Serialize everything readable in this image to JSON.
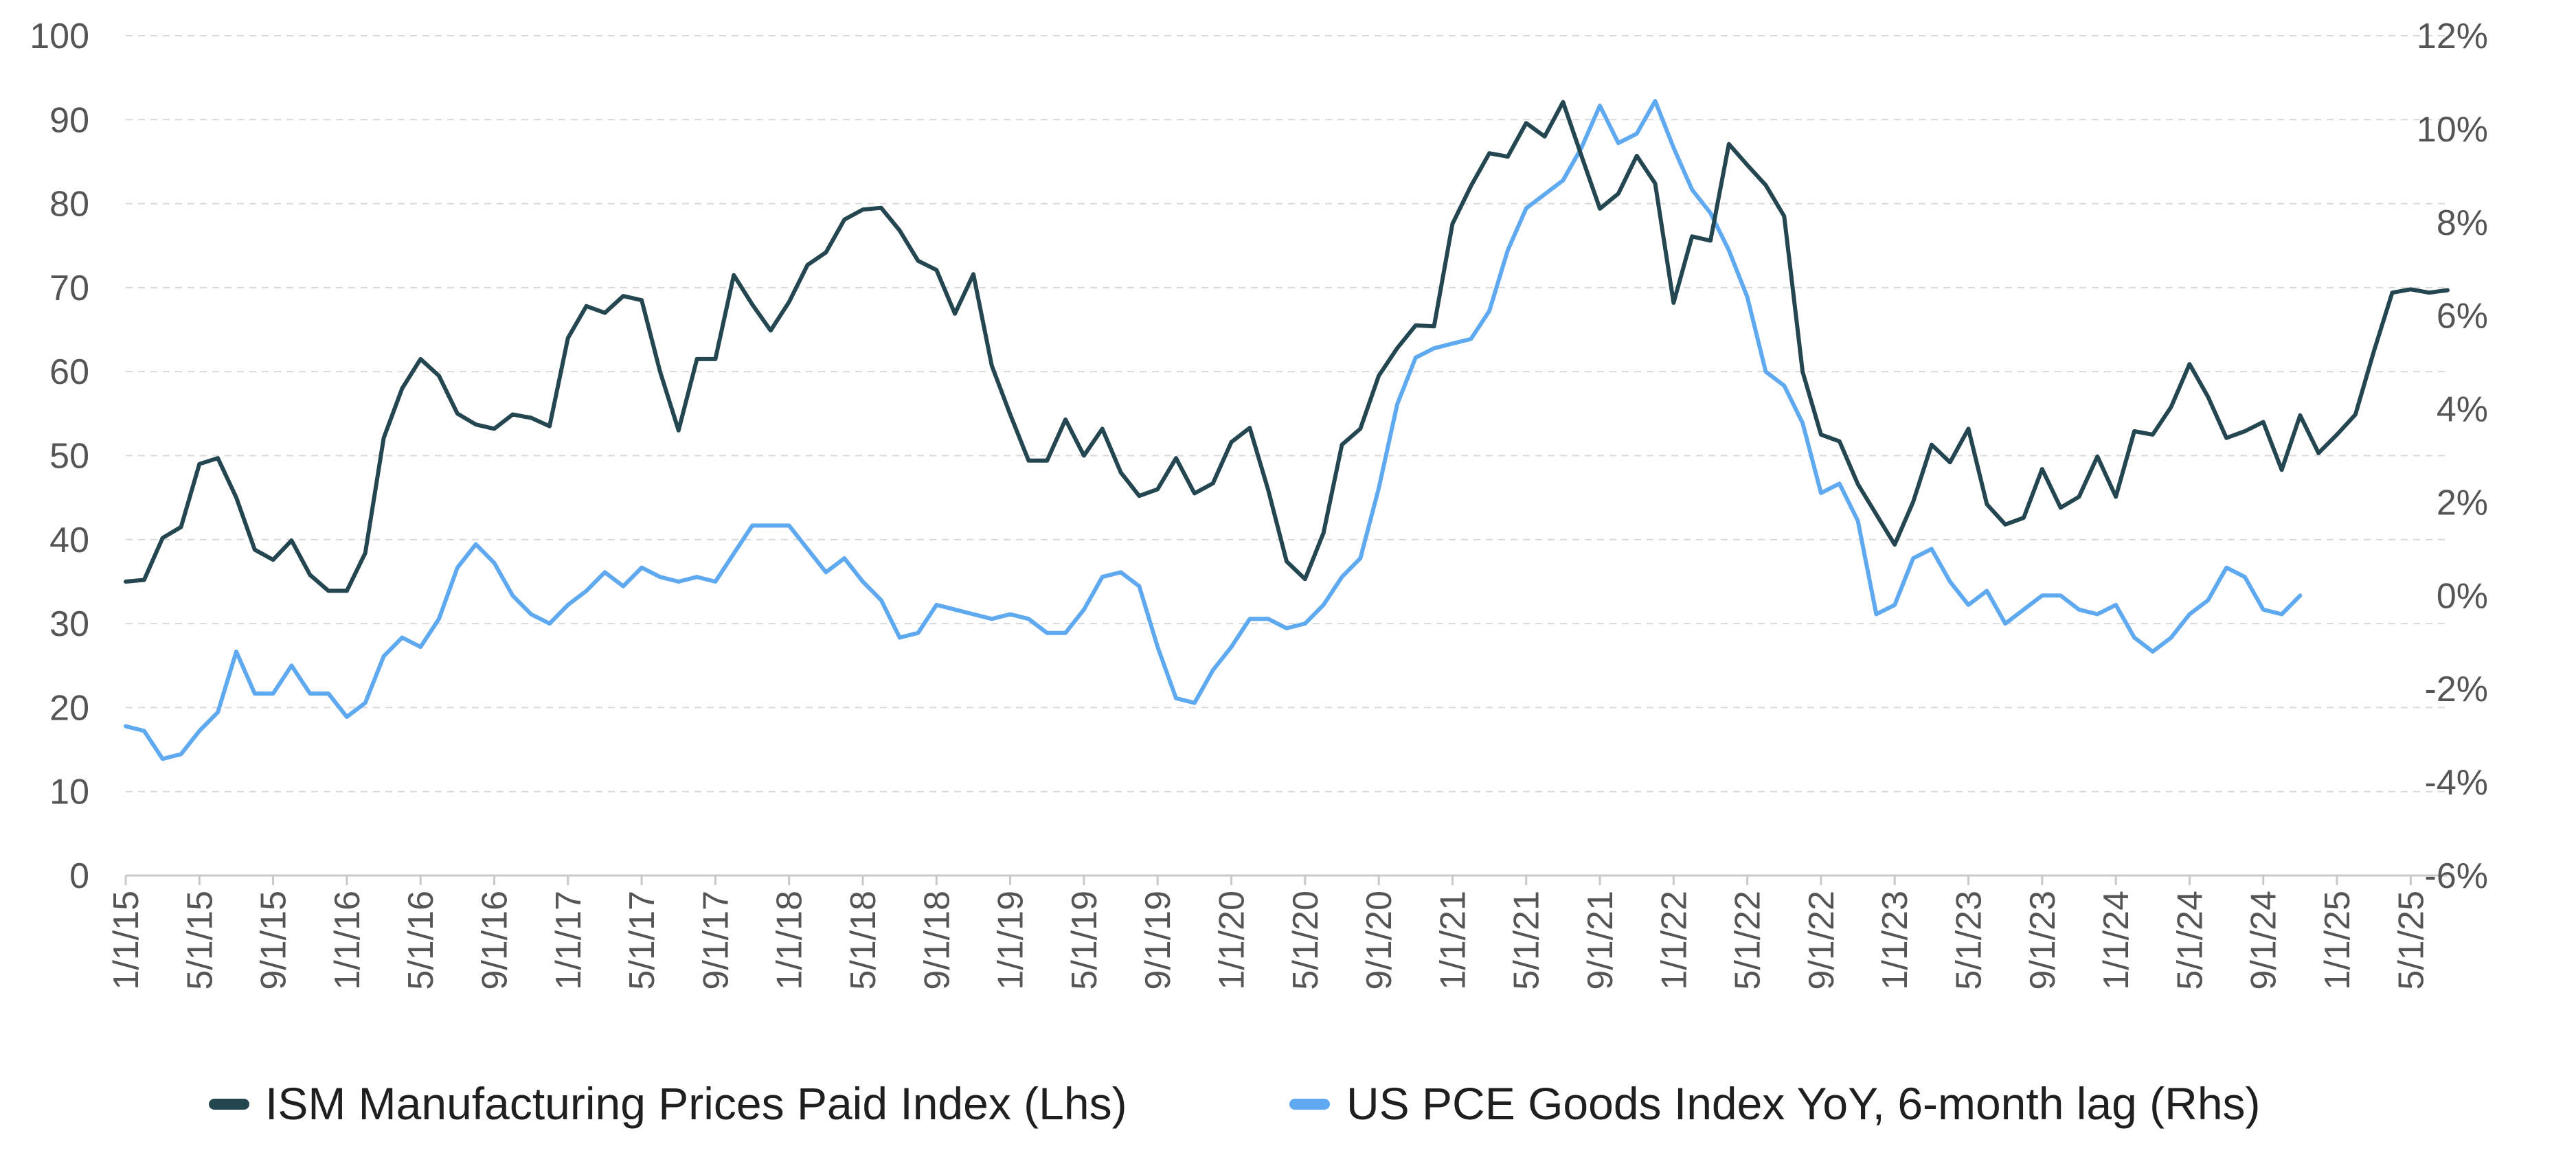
{
  "chart_data": {
    "type": "line",
    "title": "",
    "y_left": {
      "label": "",
      "min": 0,
      "max": 100,
      "ticks": [
        0,
        10,
        20,
        30,
        40,
        50,
        60,
        70,
        80,
        90,
        100
      ],
      "tick_labels": [
        "0",
        "10",
        "20",
        "30",
        "40",
        "50",
        "60",
        "70",
        "80",
        "90",
        "100"
      ]
    },
    "y_right": {
      "label": "",
      "min": -6,
      "max": 12,
      "ticks": [
        -6,
        -4,
        -2,
        0,
        2,
        4,
        6,
        8,
        10,
        12
      ],
      "tick_labels": [
        "-6%",
        "-4%",
        "-2%",
        "0%",
        "2%",
        "4%",
        "6%",
        "8%",
        "10%",
        "12%"
      ]
    },
    "x_tick_labels": [
      "1/1/15",
      "5/1/15",
      "9/1/15",
      "1/1/16",
      "5/1/16",
      "9/1/16",
      "1/1/17",
      "5/1/17",
      "9/1/17",
      "1/1/18",
      "5/1/18",
      "9/1/18",
      "1/1/19",
      "5/1/19",
      "9/1/19",
      "1/1/20",
      "5/1/20",
      "9/1/20",
      "1/1/21",
      "5/1/21",
      "9/1/21",
      "1/1/22",
      "5/1/22",
      "9/1/22",
      "1/1/23",
      "5/1/23",
      "9/1/23",
      "1/1/24",
      "5/1/24",
      "9/1/24",
      "1/1/25",
      "5/1/25"
    ],
    "x_start": "2015-01",
    "grid": true,
    "legend_position": "bottom",
    "series": [
      {
        "name": "ISM Manufacturing Prices Paid Index (Lhs)",
        "axis": "left",
        "color": "#234650",
        "values": [
          35,
          35.2,
          40.2,
          41.5,
          49,
          49.7,
          45,
          38.8,
          37.6,
          39.9,
          35.8,
          33.9,
          33.9,
          38.4,
          52.1,
          58,
          61.5,
          59.5,
          55,
          53.7,
          53.2,
          54.9,
          54.5,
          53.5,
          64,
          67.8,
          67,
          69,
          68.5,
          60,
          53,
          61.5,
          61.5,
          71.5,
          68,
          64.9,
          68.3,
          72.7,
          74.2,
          78.1,
          79.3,
          79.5,
          76.8,
          73.2,
          72.1,
          66.9,
          71.6,
          60.7,
          54.9,
          49.4,
          49.4,
          54.3,
          50,
          53.2,
          48,
          45.2,
          46,
          49.7,
          45.5,
          46.7,
          51.6,
          53.3,
          45.9,
          37.4,
          35.3,
          40.8,
          51.3,
          53.2,
          59.5,
          62.8,
          65.5,
          65.4,
          77.6,
          82.1,
          86,
          85.6,
          89.6,
          88,
          92.1,
          85.7,
          79.4,
          81.2,
          85.7,
          82.4,
          68.2,
          76.1,
          75.6,
          87.1,
          84.6,
          82.2,
          78.5,
          60,
          52.5,
          51.7,
          46.6,
          43,
          39.4,
          44.5,
          51.3,
          49.2,
          53.2,
          44.2,
          41.8,
          42.6,
          48.4,
          43.8,
          45.1,
          49.9,
          45.1,
          52.9,
          52.5,
          55.8,
          60.9,
          57,
          52.1,
          52.9,
          54,
          48.3,
          54.8,
          50.3,
          52.5,
          54.9,
          62.4,
          69.4,
          69.8,
          69.4,
          69.7
        ]
      },
      {
        "name": "US PCE Goods Index YoY, 6-month lag (Rhs)",
        "axis": "right",
        "color": "#5EA9F0",
        "values": [
          -2.8,
          -2.9,
          -3.5,
          -3.4,
          -2.9,
          -2.5,
          -1.2,
          -2.1,
          -2.1,
          -1.5,
          -2.1,
          -2.1,
          -2.6,
          -2.3,
          -1.3,
          -0.9,
          -1.1,
          -0.5,
          0.6,
          1.1,
          0.7,
          0,
          -0.4,
          -0.6,
          -0.2,
          0.1,
          0.5,
          0.2,
          0.6,
          0.4,
          0.3,
          0.4,
          0.3,
          0.9,
          1.5,
          1.5,
          1.5,
          1,
          0.5,
          0.8,
          0.3,
          -0.1,
          -0.9,
          -0.8,
          -0.2,
          -0.3,
          -0.4,
          -0.5,
          -0.4,
          -0.5,
          -0.8,
          -0.8,
          -0.3,
          0.4,
          0.5,
          0.2,
          -1.1,
          -2.2,
          -2.3,
          -1.6,
          -1.1,
          -0.5,
          -0.5,
          -0.7,
          -0.6,
          -0.2,
          0.4,
          0.8,
          2.3,
          4.1,
          5.1,
          5.3,
          5.4,
          5.5,
          6.1,
          7.4,
          8.3,
          8.6,
          8.9,
          9.6,
          10.5,
          9.7,
          9.9,
          10.6,
          9.6,
          8.7,
          8.2,
          7.4,
          6.4,
          4.8,
          4.5,
          3.7,
          2.2,
          2.4,
          1.6,
          -0.4,
          -0.2,
          0.8,
          1,
          0.3,
          -0.2,
          0.1,
          -0.6,
          -0.3,
          0,
          0,
          -0.3,
          -0.4,
          -0.2,
          -0.9,
          -1.2,
          -0.9,
          -0.4,
          -0.1,
          0.6,
          0.4,
          -0.3,
          -0.4,
          0
        ]
      }
    ]
  }
}
